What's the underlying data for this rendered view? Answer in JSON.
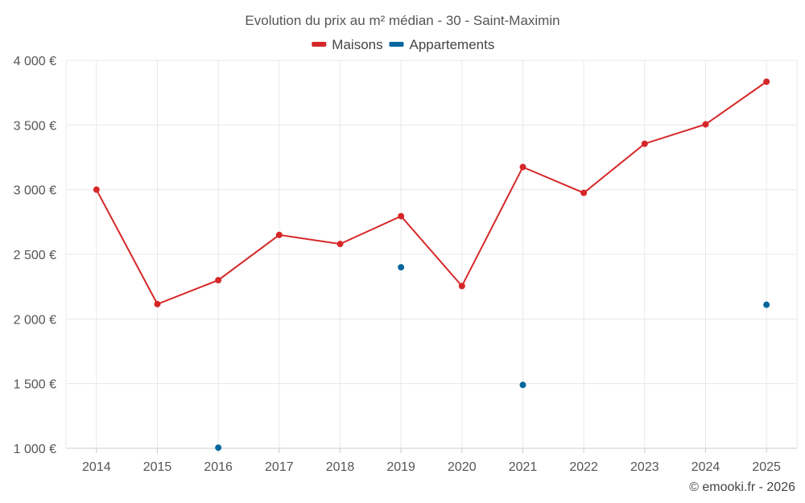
{
  "chart_data": {
    "type": "line",
    "title": "Evolution du prix au m² médian - 30 - Saint-Maximin",
    "categories": [
      "2014",
      "2015",
      "2016",
      "2017",
      "2018",
      "2019",
      "2020",
      "2021",
      "2022",
      "2023",
      "2024",
      "2025"
    ],
    "series": [
      {
        "name": "Maisons",
        "color": "#d62728",
        "mode": "line",
        "values": [
          3000,
          2115,
          2300,
          2650,
          2580,
          2795,
          2255,
          3175,
          2975,
          3355,
          3505,
          3835
        ]
      },
      {
        "name": "Appartements",
        "color": "#04679e",
        "mode": "markers",
        "values": [
          null,
          null,
          1005,
          null,
          null,
          2400,
          null,
          1490,
          null,
          null,
          null,
          2110
        ]
      }
    ],
    "ylim": [
      1000,
      4000
    ],
    "yticks": [
      1000,
      1500,
      2000,
      2500,
      3000,
      3500,
      4000
    ],
    "ytick_labels": [
      "1 000 €",
      "1 500 €",
      "2 000 €",
      "2 500 €",
      "3 000 €",
      "3 500 €",
      "4 000 €"
    ],
    "xlabel": "",
    "ylabel": "",
    "grid": true,
    "legend_position": "top-center"
  },
  "credit": "© emooki.fr - 2026"
}
